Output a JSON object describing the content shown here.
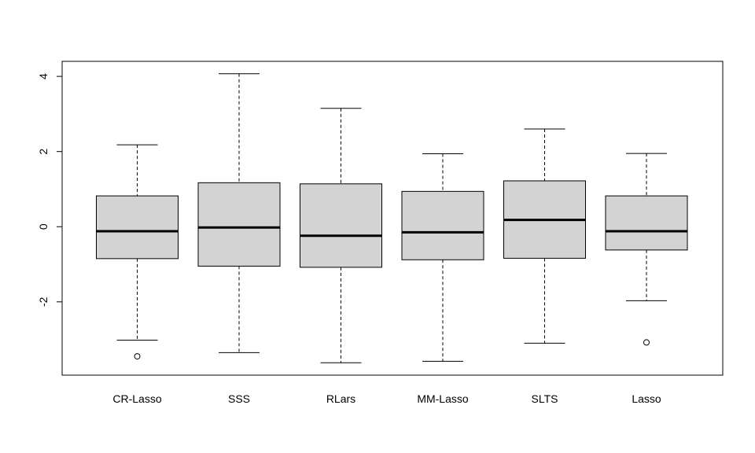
{
  "chart_data": {
    "type": "boxplot",
    "categories": [
      "CR-Lasso",
      "SSS",
      "RLars",
      "MM-Lasso",
      "SLTS",
      "Lasso"
    ],
    "boxes": [
      {
        "name": "CR-Lasso",
        "whisker_low": -3.02,
        "q1": -0.85,
        "median": -0.12,
        "q3": 0.82,
        "whisker_high": 2.18,
        "outliers": [
          -3.45
        ]
      },
      {
        "name": "SSS",
        "whisker_low": -3.35,
        "q1": -1.05,
        "median": -0.02,
        "q3": 1.17,
        "whisker_high": 4.07,
        "outliers": []
      },
      {
        "name": "RLars",
        "whisker_low": -3.62,
        "q1": -1.08,
        "median": -0.24,
        "q3": 1.14,
        "whisker_high": 3.15,
        "outliers": []
      },
      {
        "name": "MM-Lasso",
        "whisker_low": -3.58,
        "q1": -0.88,
        "median": -0.15,
        "q3": 0.94,
        "whisker_high": 1.94,
        "outliers": []
      },
      {
        "name": "SLTS",
        "whisker_low": -3.1,
        "q1": -0.84,
        "median": 0.18,
        "q3": 1.22,
        "whisker_high": 2.6,
        "outliers": []
      },
      {
        "name": "Lasso",
        "whisker_low": -1.97,
        "q1": -0.62,
        "median": -0.12,
        "q3": 0.82,
        "whisker_high": 1.95,
        "outliers": [
          -3.08
        ]
      }
    ],
    "yticks": [
      -2,
      0,
      2,
      4
    ],
    "ylim": [
      -3.95,
      4.4
    ],
    "title": "",
    "xlabel": "",
    "ylabel": "",
    "grid": false,
    "box_fill": "#d3d3d3",
    "line_color": "#000000"
  }
}
